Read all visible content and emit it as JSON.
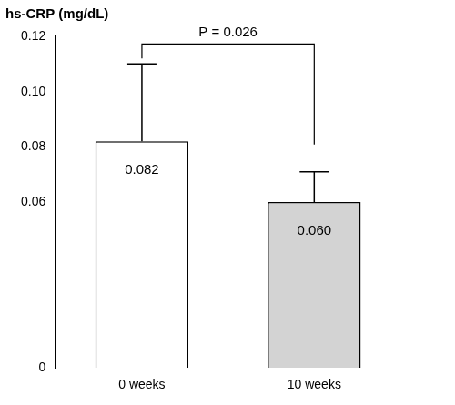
{
  "chart_data": {
    "type": "bar",
    "ylabel": "hs-CRP (mg/dL)",
    "categories": [
      "0 weeks",
      "10 weeks"
    ],
    "values": [
      0.082,
      0.06
    ],
    "value_labels": [
      "0.082",
      "0.060"
    ],
    "errors": [
      0.028,
      0.011
    ],
    "colors": [
      "#ffffff",
      "#d3d3d3"
    ],
    "data_labels": true,
    "ylim": [
      0,
      0.12
    ],
    "yticks": [
      0,
      0.06,
      0.08,
      {
        "value": 0.1,
        "label": "0.10"
      },
      0.12
    ],
    "grid": false,
    "annotations": [
      {
        "text": "P = 0.026",
        "from": 0,
        "to": 1
      }
    ]
  }
}
